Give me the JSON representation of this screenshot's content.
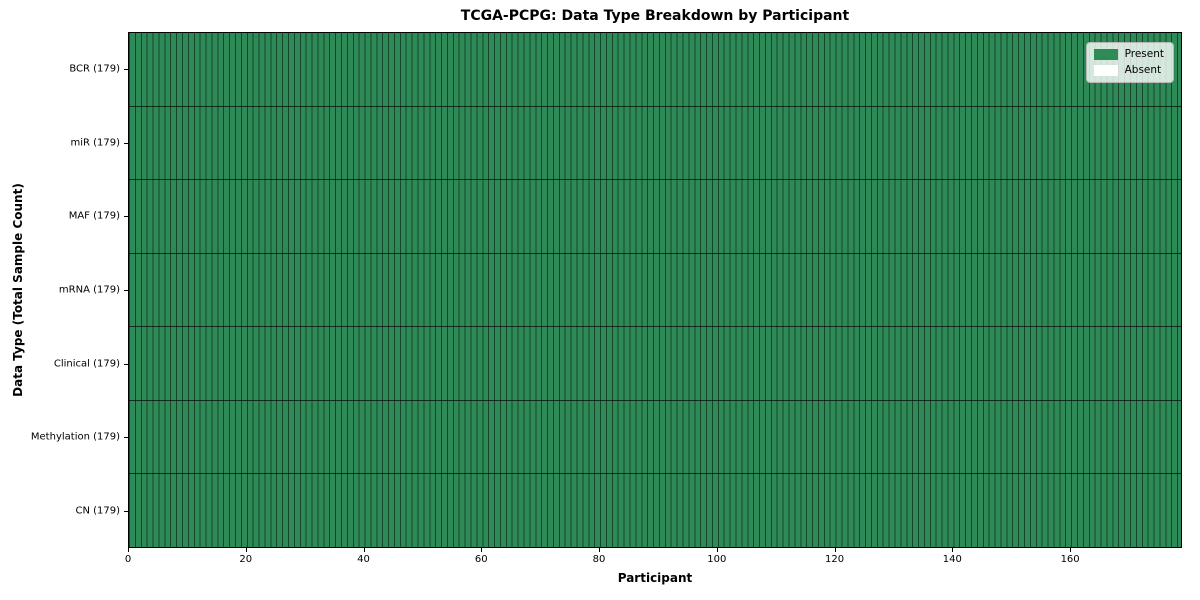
{
  "chart_data": {
    "type": "heatmap",
    "title": "TCGA-PCPG: Data Type Breakdown by Participant",
    "xlabel": "Participant",
    "ylabel": "Data Type (Total Sample Count)",
    "rows": [
      "BCR (179)",
      "miR (179)",
      "MAF (179)",
      "mRNA (179)",
      "Clinical (179)",
      "Methylation (179)",
      "CN (179)"
    ],
    "row_present_counts": [
      179,
      179,
      179,
      179,
      179,
      179,
      179
    ],
    "row_total_counts": [
      179,
      179,
      179,
      179,
      179,
      179,
      179
    ],
    "n_participants": 179,
    "all_cells_present": true,
    "x_range": [
      0,
      179
    ],
    "x_ticks": [
      0,
      20,
      40,
      60,
      80,
      100,
      120,
      140,
      160
    ],
    "grid": "off",
    "legend_position": "upper right",
    "legend": [
      {
        "label": "Present",
        "color": "#2e8b57"
      },
      {
        "label": "Absent",
        "color": "#ffffff"
      }
    ],
    "colors": {
      "present": "#2e8b57",
      "absent": "#ffffff",
      "cell_edge": "rgba(0, 0, 0, 0.5)",
      "row_separator": "rgba(0, 0, 0, 0.65)",
      "axis": "#000000",
      "background": "#ffffff"
    }
  }
}
